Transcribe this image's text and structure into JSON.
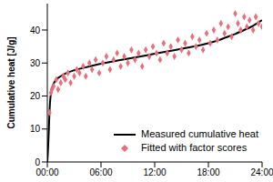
{
  "chart_data": {
    "type": "line",
    "ylabel": "Cumulative heat [J/g]",
    "xlim": [
      0,
      24
    ],
    "xticks": [
      {
        "value": 0,
        "label": "00:00"
      },
      {
        "value": 6,
        "label": "06:00"
      },
      {
        "value": 12,
        "label": "12:00"
      },
      {
        "value": 18,
        "label": "18:00"
      },
      {
        "value": 24,
        "label": "24:00"
      }
    ],
    "ylim": [
      0,
      48
    ],
    "yticks": [
      0,
      10,
      20,
      30,
      40
    ],
    "grid": false,
    "legend": "lower right",
    "series": [
      {
        "name": "Measured cumulative heat",
        "type": "line",
        "color": "#000000",
        "x": [
          0,
          0.1,
          0.2,
          0.3,
          0.5,
          0.75,
          1,
          1.5,
          2,
          3,
          4,
          6,
          8,
          10,
          12,
          14,
          16,
          18,
          19,
          20,
          21,
          22,
          23,
          24
        ],
        "values": [
          0,
          5,
          12,
          18,
          22,
          24,
          25,
          26,
          26.8,
          27.8,
          28.5,
          29.8,
          30.8,
          31.8,
          32.8,
          33.8,
          34.8,
          36,
          36.8,
          37.8,
          38.8,
          40,
          41.3,
          43
        ]
      },
      {
        "name": "Fitted with factor scores",
        "type": "scatter",
        "marker": "diamond",
        "color": "#e8707a",
        "x": [
          0.25,
          0.4,
          0.5,
          0.7,
          1,
          1.2,
          1.5,
          1.8,
          2,
          2.3,
          2.6,
          3,
          3.3,
          3.6,
          4,
          4.3,
          4.7,
          5,
          5.4,
          5.8,
          6.2,
          6.6,
          7,
          7.4,
          7.8,
          8.2,
          8.6,
          9,
          9.4,
          9.8,
          10.2,
          10.6,
          11,
          11.4,
          11.8,
          12.2,
          12.6,
          13,
          13.4,
          13.8,
          14.2,
          14.6,
          15,
          15.4,
          15.8,
          16.2,
          16.6,
          17,
          17.4,
          17.8,
          18.2,
          18.6,
          19,
          19.4,
          19.8,
          20.2,
          20.6,
          21,
          21.3,
          21.6,
          22,
          22.3,
          22.6,
          23,
          23.3,
          23.6,
          24
        ],
        "values": [
          15,
          21,
          22,
          23,
          25,
          22,
          24,
          26,
          25,
          27,
          24,
          26,
          28,
          27,
          29,
          26,
          30,
          28,
          31,
          27,
          30,
          32,
          28,
          31,
          33,
          29,
          32,
          30,
          34,
          31,
          33,
          29,
          34,
          32,
          35,
          33,
          31,
          36,
          33,
          35,
          32,
          37,
          34,
          36,
          33,
          38,
          35,
          37,
          34,
          39,
          36,
          40,
          37,
          42,
          39,
          41,
          38,
          45,
          42,
          40,
          44,
          41,
          43,
          40,
          44,
          42,
          41
        ]
      }
    ]
  }
}
